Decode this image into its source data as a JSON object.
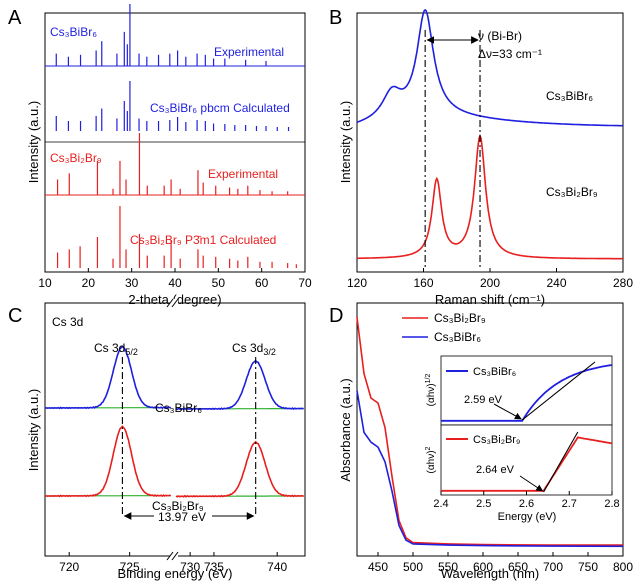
{
  "panels": {
    "A": {
      "letter": "A"
    },
    "B": {
      "letter": "B"
    },
    "C": {
      "letter": "C"
    },
    "D": {
      "letter": "D"
    }
  },
  "chart_data": [
    {
      "panel": "A",
      "type": "line",
      "xlabel": "2-theta (degree)",
      "ylabel": "Intensity (a.u.)",
      "xlim": [
        10,
        70
      ],
      "xticks": [
        "10",
        "20",
        "30",
        "40",
        "50",
        "60",
        "70"
      ],
      "y_ticks_shown": false,
      "colors": {
        "top": "#1f1fe0",
        "bottom": "#e81f1f"
      },
      "labels": {
        "top_phase": "Cs₃BiBr₆",
        "top_exp": "Experimental",
        "top_calc": "Cs₃BiBr₆ pbcm Calculated",
        "bottom_phase": "Cs₃Bi₂Br₉",
        "bottom_exp": "Experimental",
        "bottom_calc": "Cs₃Bi₂Br₉ P3̄m1 Calculated"
      },
      "series": [
        {
          "name": "Experimental",
          "color": "#1f1fe0",
          "peaks": [
            [
              12.6,
              0.2
            ],
            [
              15.4,
              0.15
            ],
            [
              18.2,
              0.18
            ],
            [
              21.8,
              0.25
            ],
            [
              23.1,
              0.4
            ],
            [
              26.6,
              0.2
            ],
            [
              28.3,
              0.55
            ],
            [
              29.0,
              0.35
            ],
            [
              29.6,
              1.0
            ],
            [
              31.7,
              0.2
            ],
            [
              33.5,
              0.15
            ],
            [
              36.2,
              0.18
            ],
            [
              38.8,
              0.2
            ],
            [
              40.6,
              0.25
            ],
            [
              42.5,
              0.15
            ],
            [
              45.1,
              0.2
            ],
            [
              47.0,
              0.18
            ],
            [
              48.9,
              0.12
            ],
            [
              51.5,
              0.12
            ],
            [
              56.3,
              0.1
            ],
            [
              61.0,
              0.08
            ]
          ]
        },
        {
          "name": "Cs₃BiBr₆ pbcm Calculated",
          "color": "#1f1fe0",
          "peaks": [
            [
              12.6,
              0.3
            ],
            [
              15.4,
              0.2
            ],
            [
              18.2,
              0.2
            ],
            [
              21.8,
              0.3
            ],
            [
              23.1,
              0.45
            ],
            [
              26.6,
              0.25
            ],
            [
              28.3,
              0.6
            ],
            [
              29.0,
              0.4
            ],
            [
              29.6,
              1.0
            ],
            [
              31.7,
              0.25
            ],
            [
              33.5,
              0.2
            ],
            [
              36.2,
              0.2
            ],
            [
              38.8,
              0.22
            ],
            [
              40.6,
              0.28
            ],
            [
              42.5,
              0.18
            ],
            [
              45.1,
              0.22
            ],
            [
              47.0,
              0.2
            ],
            [
              48.9,
              0.15
            ],
            [
              51.5,
              0.14
            ],
            [
              53.8,
              0.12
            ],
            [
              56.3,
              0.12
            ],
            [
              58.8,
              0.1
            ],
            [
              61.0,
              0.1
            ],
            [
              63.6,
              0.08
            ],
            [
              66.2,
              0.08
            ]
          ]
        },
        {
          "name": "Experimental",
          "color": "#e81f1f",
          "peaks": [
            [
              12.9,
              0.25
            ],
            [
              15.6,
              0.35
            ],
            [
              22.1,
              0.55
            ],
            [
              25.7,
              0.1
            ],
            [
              27.3,
              0.55
            ],
            [
              28.7,
              0.25
            ],
            [
              31.8,
              1.0
            ],
            [
              33.6,
              0.15
            ],
            [
              37.5,
              0.15
            ],
            [
              39.1,
              0.25
            ],
            [
              41.2,
              0.1
            ],
            [
              45.3,
              0.4
            ],
            [
              46.5,
              0.2
            ],
            [
              49.4,
              0.15
            ],
            [
              52.6,
              0.12
            ],
            [
              54.5,
              0.1
            ],
            [
              56.8,
              0.15
            ],
            [
              59.6,
              0.08
            ],
            [
              62.4,
              0.06
            ],
            [
              66.0,
              0.06
            ]
          ]
        },
        {
          "name": "Cs₃Bi₂Br₉ P3̄m1 Calculated",
          "color": "#e81f1f",
          "peaks": [
            [
              12.9,
              0.25
            ],
            [
              15.6,
              0.3
            ],
            [
              18.1,
              0.35
            ],
            [
              22.1,
              0.5
            ],
            [
              25.7,
              0.15
            ],
            [
              27.3,
              1.0
            ],
            [
              28.7,
              0.3
            ],
            [
              31.8,
              0.55
            ],
            [
              33.6,
              0.2
            ],
            [
              37.5,
              0.2
            ],
            [
              39.1,
              0.45
            ],
            [
              41.2,
              0.15
            ],
            [
              45.3,
              0.3
            ],
            [
              46.5,
              0.2
            ],
            [
              49.4,
              0.18
            ],
            [
              52.6,
              0.15
            ],
            [
              54.5,
              0.12
            ],
            [
              56.8,
              0.18
            ],
            [
              59.6,
              0.1
            ],
            [
              62.4,
              0.1
            ],
            [
              66.0,
              0.08
            ],
            [
              68.0,
              0.06
            ]
          ]
        }
      ]
    },
    {
      "panel": "B",
      "type": "line",
      "xlabel": "Raman shift (cm⁻¹)",
      "ylabel": "Intensity (a.u.)",
      "xlim": [
        120,
        280
      ],
      "xticks": [
        "120",
        "160",
        "200",
        "240",
        "280"
      ],
      "y_ticks_shown": false,
      "annotation": {
        "line1": "ν (Bi-Br)",
        "line2": "Δν=33 cm⁻¹",
        "x1": 161,
        "x2": 194
      },
      "series": [
        {
          "name": "Cs₃BiBr₆",
          "color": "#1f1fe0",
          "baseline": 0.56,
          "peaks": [
            [
              141,
              0.1,
              7
            ],
            [
              161,
              0.4,
              6
            ]
          ]
        },
        {
          "name": "Cs₃Bi₂Br₉",
          "color": "#e81f1f",
          "baseline": 0.05,
          "peaks": [
            [
              168,
              0.3,
              3.5
            ],
            [
              194,
              0.47,
              4
            ]
          ]
        }
      ]
    },
    {
      "panel": "C",
      "type": "line",
      "title": "Cs 3d",
      "xlabel": "Binding energy (eV)",
      "ylabel": "Intensity (a.u.)",
      "xticks": [
        "720",
        "725",
        "730",
        "735",
        "740"
      ],
      "axis_break": true,
      "y_ticks_shown": false,
      "peak_labels": {
        "p1": "Cs 3d5/2",
        "p2": "Cs 3d3/2"
      },
      "separation_label": "13.97 eV",
      "series": [
        {
          "name": "Cs₃BiBr₆",
          "color": "#1f1fe0",
          "fit_color": "#2fb02f",
          "peaks": [
            [
              724.4,
              1.0
            ],
            [
              738.3,
              0.78
            ]
          ]
        },
        {
          "name": "Cs₃Bi₂Br₉",
          "color": "#e81f1f",
          "fit_color": "#2fb02f",
          "peaks": [
            [
              724.4,
              1.0
            ],
            [
              738.3,
              0.78
            ]
          ]
        }
      ]
    },
    {
      "panel": "D",
      "type": "line",
      "xlabel": "Wavelength (nm)",
      "ylabel": "Absorbance (a.u.)",
      "xlim": [
        420,
        800
      ],
      "xticks": [
        "450",
        "500",
        "550",
        "600",
        "650",
        "700",
        "750",
        "800"
      ],
      "y_ticks_shown": false,
      "legend": {
        "placement": "top",
        "entries": [
          {
            "name": "Cs₃Bi₂Br₉",
            "color": "#e81f1f"
          },
          {
            "name": "Cs₃BiBr₆",
            "color": "#1f1fe0"
          }
        ]
      },
      "series": [
        {
          "name": "Cs₃Bi₂Br₉",
          "color": "#e81f1f",
          "points": [
            [
              420,
              0.95
            ],
            [
              430,
              0.72
            ],
            [
              440,
              0.62
            ],
            [
              450,
              0.6
            ],
            [
              460,
              0.5
            ],
            [
              470,
              0.3
            ],
            [
              480,
              0.12
            ],
            [
              490,
              0.05
            ],
            [
              500,
              0.03
            ],
            [
              550,
              0.025
            ],
            [
              600,
              0.022
            ],
            [
              700,
              0.02
            ],
            [
              800,
              0.02
            ]
          ]
        },
        {
          "name": "Cs₃BiBr₆",
          "color": "#1f1fe0",
          "points": [
            [
              420,
              0.65
            ],
            [
              430,
              0.48
            ],
            [
              440,
              0.44
            ],
            [
              450,
              0.42
            ],
            [
              460,
              0.36
            ],
            [
              470,
              0.24
            ],
            [
              480,
              0.1
            ],
            [
              490,
              0.04
            ],
            [
              500,
              0.025
            ],
            [
              550,
              0.02
            ],
            [
              600,
              0.018
            ],
            [
              700,
              0.016
            ],
            [
              800,
              0.015
            ]
          ]
        }
      ],
      "insets": {
        "xlabel": "Energy (eV)",
        "xlim": [
          2.4,
          2.8
        ],
        "xticks": [
          "2.4",
          "2.5",
          "2.6",
          "2.7",
          "2.8"
        ],
        "top": {
          "ylabel": "(αhν)1/2",
          "name": "Cs₃BiBr₆",
          "color": "#1f1fe0",
          "bandgap": "2.59 eV",
          "eg": 2.59
        },
        "bottom": {
          "ylabel": "(αhν)2",
          "name": "Cs₃Bi₂Br₉",
          "color": "#e81f1f",
          "bandgap": "2.64 eV",
          "eg": 2.64
        }
      }
    }
  ]
}
